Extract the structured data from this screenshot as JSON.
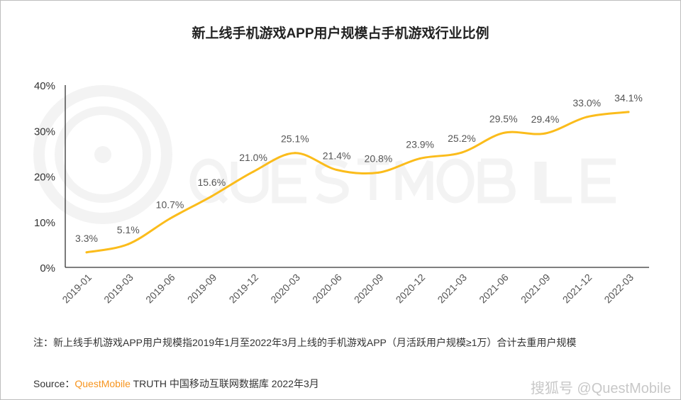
{
  "chart_data": {
    "type": "line",
    "title": "新上线手机游戏APP用户规模占手机游戏行业比例",
    "categories": [
      "2019-01",
      "2019-03",
      "2019-06",
      "2019-09",
      "2019-12",
      "2020-03",
      "2020-06",
      "2020-09",
      "2020-12",
      "2021-03",
      "2021-06",
      "2021-09",
      "2021-12",
      "2022-03"
    ],
    "values": [
      3.3,
      5.1,
      10.7,
      15.6,
      21.0,
      25.1,
      21.4,
      20.8,
      23.9,
      25.2,
      29.5,
      29.4,
      33.0,
      34.1
    ],
    "data_labels": [
      "3.3%",
      "5.1%",
      "10.7%",
      "15.6%",
      "21.0%",
      "25.1%",
      "21.4%",
      "20.8%",
      "23.9%",
      "25.2%",
      "29.5%",
      "29.4%",
      "33.0%",
      "34.1%"
    ],
    "yticks": [
      "0%",
      "10%",
      "20%",
      "30%",
      "40%"
    ],
    "ylim": [
      0,
      40
    ],
    "xlabel": "",
    "ylabel": "",
    "grid": false,
    "smooth": true,
    "line_color": "#FBBC1B"
  },
  "footer": {
    "note": "注：新上线手机游戏APP用户规模指2019年1月至2022年3月上线的手机游戏APP（月活跃用户规模≥1万）合计去重用户规模",
    "source_prefix": "Source：",
    "source_brand": "QuestMobile",
    "source_rest": " TRUTH 中国移动互联网数据库 2022年3月",
    "watermark": "搜狐号 @QuestMobile",
    "background_watermark": "QUESTMOBILE"
  }
}
